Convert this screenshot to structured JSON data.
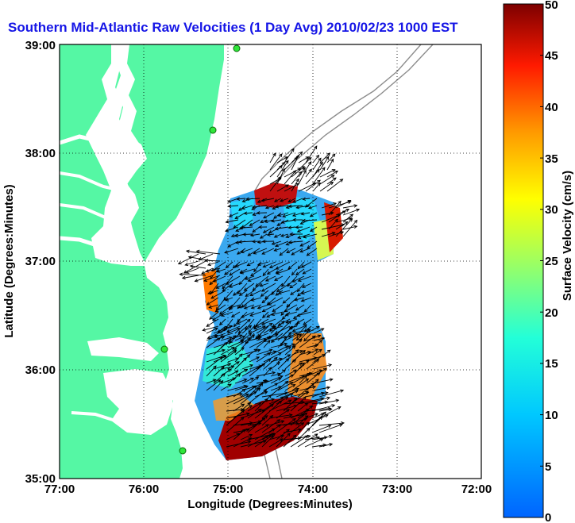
{
  "title": "Southern Mid-Atlantic Raw Velocities (1 Day Avg) 2010/02/23 1000 EST",
  "map": {
    "xlabel": "Longitude (Degrees:Minutes)",
    "ylabel": "Latitude (Degrees:Minutes)",
    "x_ticks": [
      "77:00",
      "76:00",
      "75:00",
      "74:00",
      "73:00",
      "72:00"
    ],
    "y_ticks": [
      "39:00",
      "38:00",
      "37:00",
      "36:00",
      "35:00"
    ],
    "land_color": "#55f7a4",
    "water_color": "#ffffff",
    "bathymetry_color": "#8c8c8c",
    "grid": "dotted"
  },
  "colorbar": {
    "label": "Surface Velocity (cm/s)",
    "ticks": [
      "50",
      "45",
      "40",
      "35",
      "30",
      "25",
      "20",
      "15",
      "10",
      "5",
      "0"
    ],
    "range": [
      0,
      50
    ],
    "colormap": "jet"
  }
}
